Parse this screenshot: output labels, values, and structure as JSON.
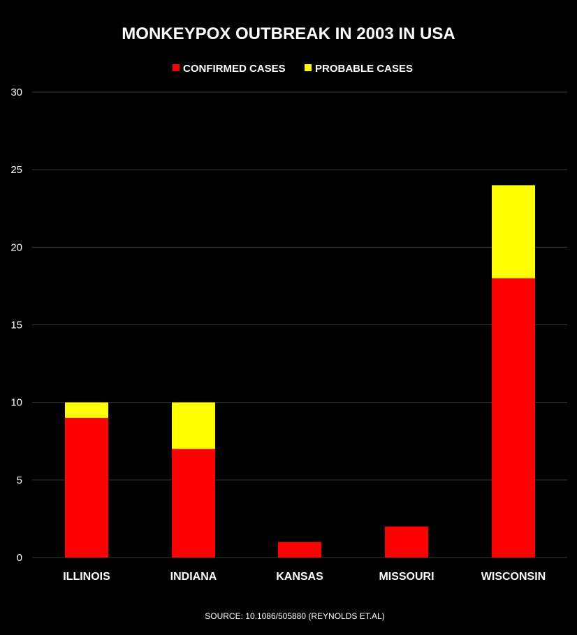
{
  "chart_data": {
    "type": "bar",
    "stacked": true,
    "title": "MONKEYPOX OUTBREAK IN 2003 IN USA",
    "categories": [
      "ILLINOIS",
      "INDIANA",
      "KANSAS",
      "MISSOURI",
      "WISCONSIN"
    ],
    "series": [
      {
        "name": "CONFIRMED CASES",
        "color": "#ff0000",
        "values": [
          9,
          7,
          1,
          2,
          18
        ]
      },
      {
        "name": "PROBABLE CASES",
        "color": "#ffff00",
        "values": [
          1,
          3,
          0,
          0,
          6
        ]
      }
    ],
    "yticks": [
      "0",
      "5",
      "10",
      "15",
      "20",
      "25",
      "30"
    ],
    "ylim": [
      0,
      30
    ],
    "grid": true,
    "legend_position": "top-center",
    "xlabel": "",
    "ylabel": "",
    "source": "SOURCE: 10.1086/505880 (REYNOLDS ET.AL)"
  },
  "colors": {
    "background": "#000000",
    "gridline": "#3a3a3a",
    "text": "#ffffff"
  }
}
